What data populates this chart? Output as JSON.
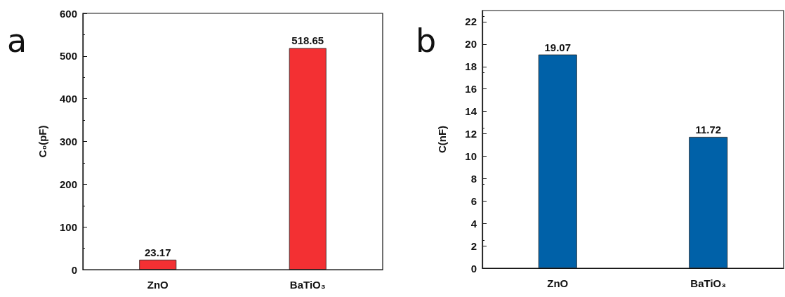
{
  "chart_data": [
    {
      "type": "bar",
      "annotations": [
        "a"
      ],
      "ylabel": "C₀(pF)",
      "categories": [
        "ZnO",
        "BaTiO₃"
      ],
      "values": [
        23.17,
        518.65
      ],
      "color": "#f33033",
      "ylim": [
        0,
        600
      ],
      "yticks": [
        0,
        100,
        200,
        300,
        400,
        500,
        600
      ],
      "data_labels": true,
      "grid": false
    },
    {
      "type": "bar",
      "annotations": [
        "b"
      ],
      "ylabel": "C(nF)",
      "categories": [
        "ZnO",
        "BaTiO₃"
      ],
      "values": [
        19.07,
        11.72
      ],
      "color": "#0061a8",
      "ylim": [
        0,
        23
      ],
      "yticks": [
        0,
        2,
        4,
        6,
        8,
        10,
        12,
        14,
        16,
        18,
        20,
        22
      ],
      "data_labels": true,
      "grid": false
    }
  ]
}
